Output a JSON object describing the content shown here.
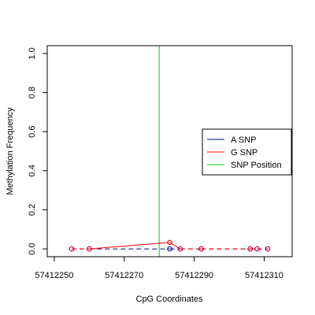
{
  "chart_data": {
    "type": "scatter",
    "title": "",
    "xlabel": "CpG Coordinates",
    "ylabel": "Methylation Frequency",
    "xlim": [
      57412248,
      57412318
    ],
    "ylim": [
      -0.04,
      1.04
    ],
    "x_ticks": [
      57412250,
      57412270,
      57412290,
      57412310
    ],
    "x_tick_labels": [
      "57412250",
      "57412270",
      "57412290",
      "57412310"
    ],
    "y_ticks": [
      0.0,
      0.2,
      0.4,
      0.6,
      0.8,
      1.0
    ],
    "y_tick_labels": [
      "0.0",
      "0.2",
      "0.4",
      "0.6",
      "0.8",
      "1.0"
    ],
    "grid": false,
    "legend_position": "right",
    "snp_position": 57412280,
    "series": [
      {
        "name": "A SNP",
        "color": "#00008b",
        "points": [
          {
            "x": 57412255,
            "y": 0.0
          },
          {
            "x": 57412260,
            "y": 0.0
          },
          {
            "x": 57412283,
            "y": 0.0
          },
          {
            "x": 57412286,
            "y": 0.0
          },
          {
            "x": 57412292,
            "y": 0.0
          },
          {
            "x": 57412306,
            "y": 0.0
          },
          {
            "x": 57412308,
            "y": 0.0
          },
          {
            "x": 57412311,
            "y": 0.0
          }
        ]
      },
      {
        "name": "G SNP",
        "color": "#ff0000",
        "points": [
          {
            "x": 57412255,
            "y": 0.0
          },
          {
            "x": 57412260,
            "y": 0.0
          },
          {
            "x": 57412283,
            "y": 0.033
          },
          {
            "x": 57412286,
            "y": 0.0
          },
          {
            "x": 57412292,
            "y": 0.0
          },
          {
            "x": 57412306,
            "y": 0.0
          },
          {
            "x": 57412308,
            "y": 0.0
          },
          {
            "x": 57412311,
            "y": 0.0
          }
        ]
      }
    ],
    "legend": [
      {
        "label": "A SNP",
        "color": "#00008b"
      },
      {
        "label": "G SNP",
        "color": "#ff0000"
      },
      {
        "label": "SNP Position",
        "color": "#00cc00"
      }
    ],
    "point_color": "#cc0055"
  }
}
